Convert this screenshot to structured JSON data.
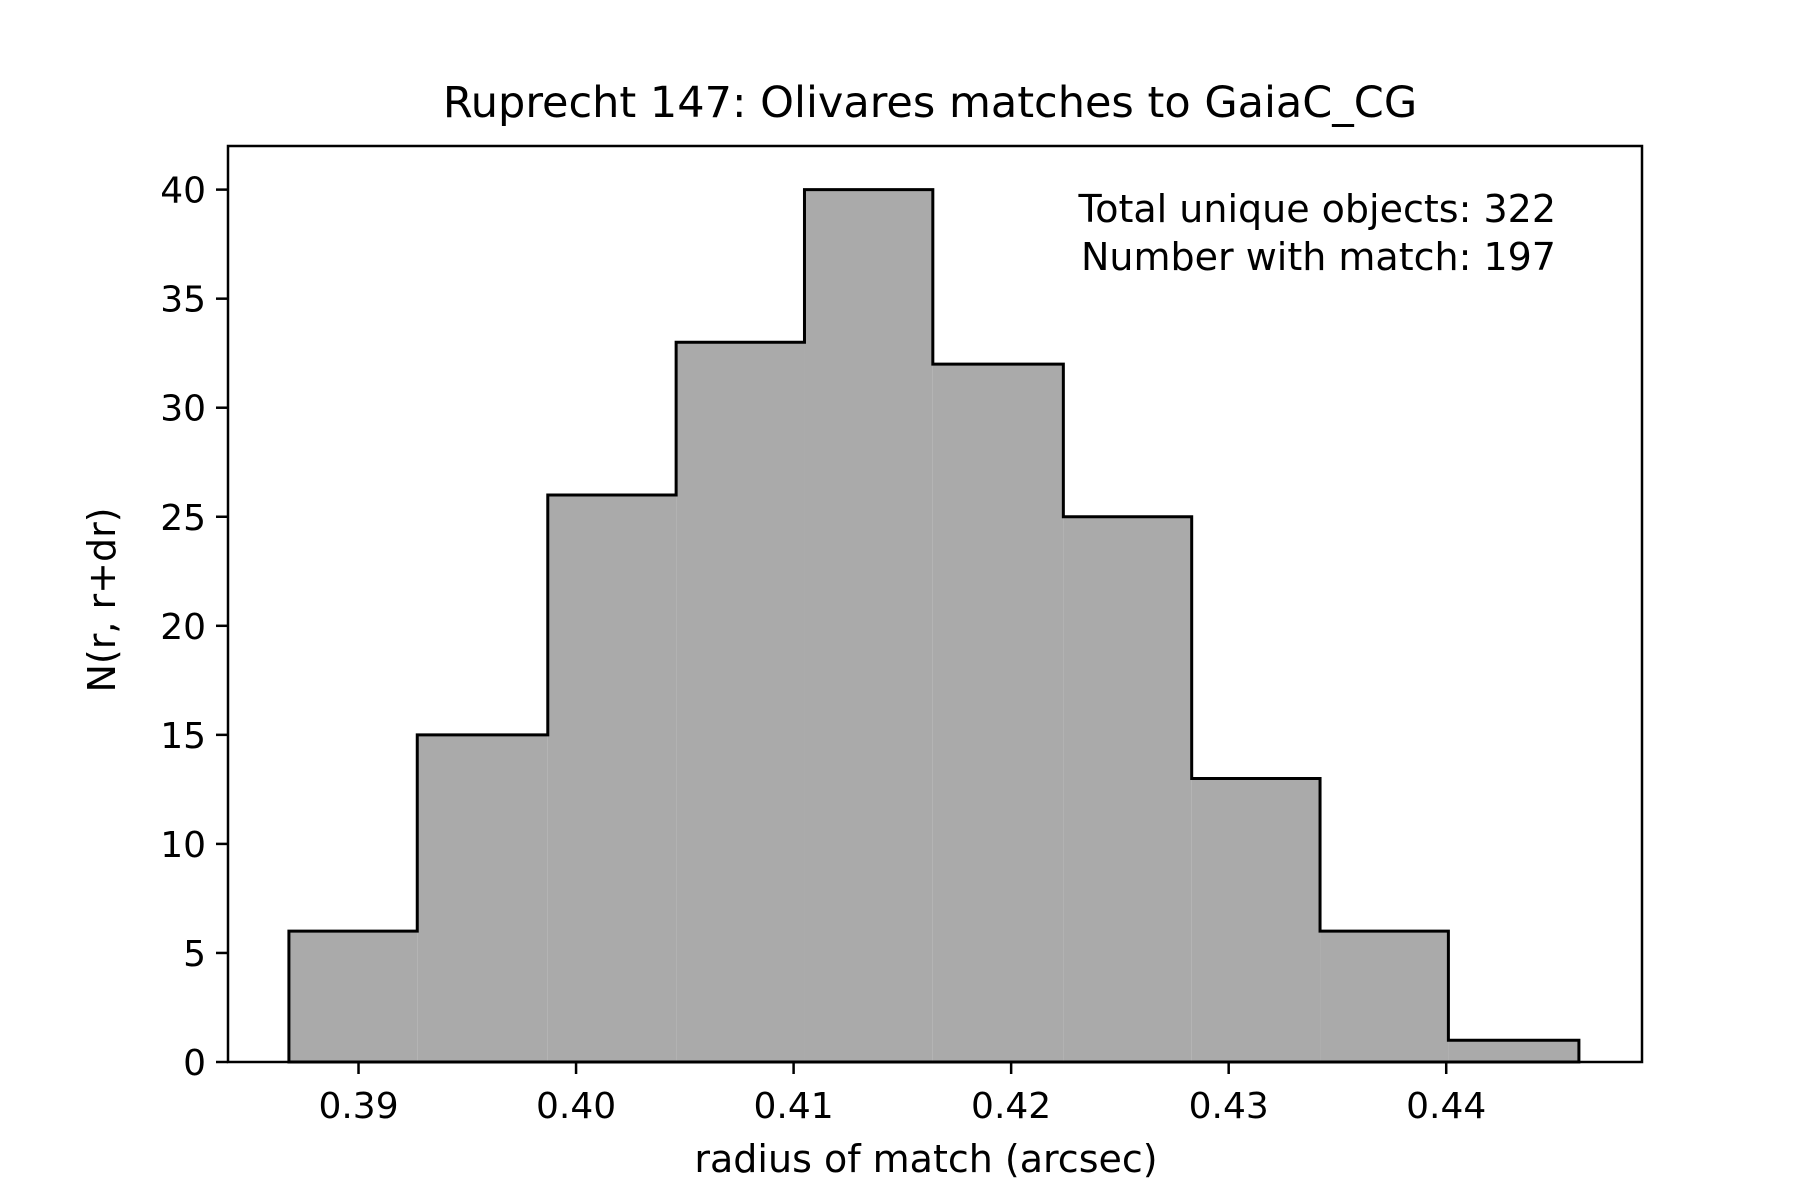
{
  "chart_data": {
    "type": "histogram",
    "title": "Ruprecht 147: Olivares matches to GaiaC_CG",
    "xlabel": "radius of match (arcsec)",
    "ylabel": "N(r, r+dr)",
    "xlim": [
      0.384,
      0.449
    ],
    "ylim": [
      0,
      42
    ],
    "x_ticks": [
      0.39,
      0.4,
      0.41,
      0.42,
      0.43,
      0.44
    ],
    "x_tick_labels": [
      "0.39",
      "0.40",
      "0.41",
      "0.42",
      "0.43",
      "0.44"
    ],
    "y_ticks": [
      0,
      5,
      10,
      15,
      20,
      25,
      30,
      35,
      40
    ],
    "y_tick_labels": [
      "0",
      "5",
      "10",
      "15",
      "20",
      "25",
      "30",
      "35",
      "40"
    ],
    "bin_edges": [
      0.3868,
      0.3927,
      0.3987,
      0.4046,
      0.4105,
      0.4164,
      0.4224,
      0.4283,
      0.4342,
      0.4401,
      0.4461
    ],
    "values": [
      6,
      15,
      26,
      33,
      40,
      32,
      25,
      13,
      6,
      1
    ],
    "fill_color": "#aaaaaa",
    "edge_color": "#000000",
    "annotations": [
      "Total unique objects: 322",
      "Number with match: 197"
    ],
    "annotation_placement": "top-right",
    "grid": false
  }
}
